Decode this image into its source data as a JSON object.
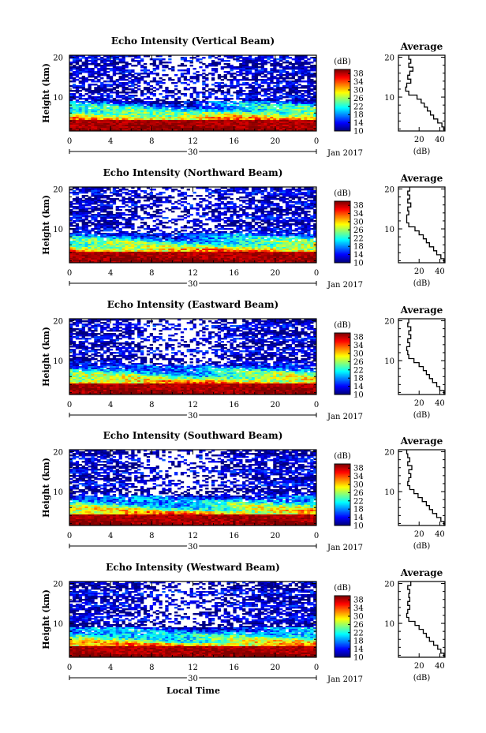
{
  "figure": {
    "xlabel": "Local Time",
    "date_label": "Jan 2017",
    "day_label": "30",
    "avg_xlabel": "(dB)",
    "avg_title": "Average",
    "colorbar_label": "(dB)"
  },
  "chart_data": [
    {
      "type": "heatmap",
      "title": "Echo Intensity (Vertical Beam)",
      "ylabel": "Height (km)",
      "xlabel": "Local Time",
      "x_ticks": [
        "0",
        "4",
        "8",
        "12",
        "16",
        "20",
        "0"
      ],
      "xlim": [
        0,
        24
      ],
      "y_ticks": [
        "20",
        "10"
      ],
      "ylim": [
        1.5,
        20.5
      ],
      "colorbar": {
        "label": "(dB)",
        "ticks": [
          "38",
          "34",
          "30",
          "26",
          "22",
          "18",
          "14",
          "10"
        ],
        "range": [
          10,
          40
        ]
      },
      "average_profile": {
        "title": "Average",
        "xlabel": "(dB)",
        "x_ticks": [
          "20",
          "40"
        ],
        "xlim": [
          0,
          45
        ],
        "y_ticks": [
          "20",
          "10"
        ],
        "heights": [
          2,
          3,
          4,
          5,
          6,
          7,
          8,
          9,
          10,
          11,
          12,
          13,
          14,
          15,
          16,
          17,
          18,
          19,
          20
        ],
        "values": [
          44,
          42,
          38,
          34,
          31,
          28,
          25,
          22,
          18,
          10,
          7,
          8,
          12,
          9,
          11,
          14,
          10,
          12,
          10
        ]
      }
    },
    {
      "type": "heatmap",
      "title": "Echo Intensity (Northward Beam)",
      "ylabel": "Height (km)",
      "x_ticks": [
        "0",
        "4",
        "8",
        "12",
        "16",
        "20",
        "0"
      ],
      "xlim": [
        0,
        24
      ],
      "y_ticks": [
        "20",
        "10"
      ],
      "ylim": [
        1.5,
        20.5
      ],
      "colorbar": {
        "label": "(dB)",
        "ticks": [
          "38",
          "34",
          "30",
          "26",
          "22",
          "18",
          "14",
          "10"
        ],
        "range": [
          10,
          40
        ]
      },
      "average_profile": {
        "title": "Average",
        "xlabel": "(dB)",
        "x_ticks": [
          "20",
          "40"
        ],
        "xlim": [
          0,
          45
        ],
        "y_ticks": [
          "20",
          "10"
        ],
        "heights": [
          2,
          3,
          4,
          5,
          6,
          7,
          8,
          9,
          10,
          11,
          12,
          13,
          14,
          15,
          16,
          17,
          18,
          19,
          20
        ],
        "values": [
          44,
          41,
          37,
          34,
          30,
          27,
          24,
          20,
          16,
          10,
          8,
          8,
          10,
          9,
          12,
          9,
          11,
          9,
          11
        ]
      }
    },
    {
      "type": "heatmap",
      "title": "Echo Intensity (Eastward Beam)",
      "ylabel": "Height (km)",
      "x_ticks": [
        "0",
        "4",
        "8",
        "12",
        "16",
        "20",
        "0"
      ],
      "xlim": [
        0,
        24
      ],
      "y_ticks": [
        "20",
        "10"
      ],
      "ylim": [
        1.5,
        20.5
      ],
      "colorbar": {
        "label": "(dB)",
        "ticks": [
          "38",
          "34",
          "30",
          "26",
          "22",
          "18",
          "14",
          "10"
        ],
        "range": [
          10,
          40
        ]
      },
      "average_profile": {
        "title": "Average",
        "xlabel": "(dB)",
        "x_ticks": [
          "20",
          "40"
        ],
        "xlim": [
          0,
          45
        ],
        "y_ticks": [
          "20",
          "10"
        ],
        "heights": [
          2,
          3,
          4,
          5,
          6,
          7,
          8,
          9,
          10,
          11,
          12,
          13,
          14,
          15,
          16,
          17,
          18,
          19,
          20
        ],
        "values": [
          44,
          40,
          37,
          33,
          30,
          27,
          24,
          20,
          15,
          10,
          9,
          8,
          11,
          9,
          12,
          10,
          12,
          9,
          10
        ]
      }
    },
    {
      "type": "heatmap",
      "title": "Echo Intensity (Southward Beam)",
      "ylabel": "Height (km)",
      "x_ticks": [
        "0",
        "4",
        "8",
        "12",
        "16",
        "20",
        "0"
      ],
      "xlim": [
        0,
        24
      ],
      "y_ticks": [
        "20",
        "10"
      ],
      "ylim": [
        1.5,
        20.5
      ],
      "colorbar": {
        "label": "(dB)",
        "ticks": [
          "38",
          "34",
          "30",
          "26",
          "22",
          "18",
          "14",
          "10"
        ],
        "range": [
          10,
          40
        ]
      },
      "average_profile": {
        "title": "Average",
        "xlabel": "(dB)",
        "x_ticks": [
          "20",
          "40"
        ],
        "xlim": [
          0,
          45
        ],
        "y_ticks": [
          "20",
          "10"
        ],
        "heights": [
          2,
          3,
          4,
          5,
          6,
          7,
          8,
          9,
          10,
          11,
          12,
          13,
          14,
          15,
          16,
          17,
          18,
          19,
          20
        ],
        "values": [
          44,
          41,
          37,
          33,
          30,
          27,
          23,
          19,
          15,
          11,
          9,
          10,
          12,
          10,
          13,
          9,
          11,
          9,
          8
        ]
      }
    },
    {
      "type": "heatmap",
      "title": "Echo Intensity (Westward Beam)",
      "ylabel": "Height (km)",
      "x_ticks": [
        "0",
        "4",
        "8",
        "12",
        "16",
        "20",
        "0"
      ],
      "xlim": [
        0,
        24
      ],
      "y_ticks": [
        "20",
        "10"
      ],
      "ylim": [
        1.5,
        20.5
      ],
      "colorbar": {
        "label": "(dB)",
        "ticks": [
          "38",
          "34",
          "30",
          "26",
          "22",
          "18",
          "14",
          "10"
        ],
        "range": [
          10,
          40
        ]
      },
      "average_profile": {
        "title": "Average",
        "xlabel": "(dB)",
        "x_ticks": [
          "20",
          "40"
        ],
        "xlim": [
          0,
          45
        ],
        "y_ticks": [
          "20",
          "10"
        ],
        "heights": [
          2,
          3,
          4,
          5,
          6,
          7,
          8,
          9,
          10,
          11,
          12,
          13,
          14,
          15,
          16,
          17,
          18,
          19,
          20
        ],
        "values": [
          44,
          41,
          38,
          34,
          30,
          27,
          24,
          20,
          16,
          10,
          8,
          9,
          11,
          9,
          11,
          10,
          11,
          9,
          12
        ]
      }
    }
  ]
}
